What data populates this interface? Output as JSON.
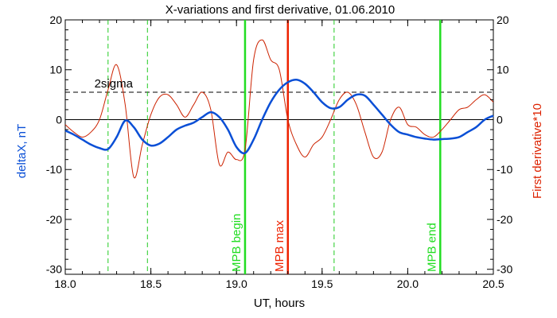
{
  "chart_data": {
    "type": "line",
    "title": "X-variations and first derivative, 01.06.2010",
    "xlabel": "UT, hours",
    "ylabel_left": "deltaX, nT",
    "ylabel_right": "First derivative*10",
    "xlim": [
      18.0,
      20.5
    ],
    "ylim": [
      -31,
      20
    ],
    "x_ticks": [
      18.0,
      18.5,
      19.0,
      19.5,
      20.0,
      20.5
    ],
    "x_tick_labels": [
      "18.0",
      "18.5",
      "19.0",
      "19.5",
      "20.0",
      "20.5"
    ],
    "y_ticks": [
      20,
      10,
      0,
      -10,
      -20,
      -30
    ],
    "y_tick_labels": [
      "20",
      "10",
      "0",
      "-10",
      "-20",
      "-30"
    ],
    "colors": {
      "deltaX": "#0a4fd6",
      "derivative": "#cc2200",
      "mpb_edges": "#22dd22",
      "mpb_max": "#ee2200",
      "sigma_band": "#22cc22"
    },
    "series": [
      {
        "name": "deltaX, nT",
        "x": [
          18.0,
          18.05,
          18.1,
          18.15,
          18.2,
          18.25,
          18.3,
          18.35,
          18.4,
          18.45,
          18.5,
          18.55,
          18.6,
          18.65,
          18.7,
          18.75,
          18.8,
          18.85,
          18.9,
          18.95,
          19.0,
          19.05,
          19.1,
          19.15,
          19.2,
          19.25,
          19.3,
          19.35,
          19.4,
          19.45,
          19.5,
          19.55,
          19.6,
          19.65,
          19.7,
          19.75,
          19.8,
          19.85,
          19.9,
          19.95,
          20.0,
          20.05,
          20.1,
          20.15,
          20.2,
          20.25,
          20.3,
          20.35,
          20.4,
          20.45,
          20.5
        ],
        "values": [
          -2.2,
          -3.0,
          -4.0,
          -5.0,
          -5.7,
          -5.9,
          -3.5,
          -0.2,
          -1.5,
          -4.0,
          -5.2,
          -4.8,
          -3.5,
          -2.0,
          -1.2,
          -0.6,
          0.5,
          1.5,
          0.5,
          -2.0,
          -5.5,
          -6.7,
          -4.0,
          0.0,
          3.5,
          6.0,
          7.5,
          8.0,
          7.2,
          5.5,
          3.5,
          2.3,
          2.5,
          4.0,
          5.0,
          4.8,
          3.0,
          1.0,
          -1.0,
          -2.5,
          -3.0,
          -3.5,
          -3.8,
          -4.0,
          -3.9,
          -3.8,
          -3.5,
          -2.5,
          -1.5,
          0.0,
          0.8
        ]
      },
      {
        "name": "First derivative*10",
        "x": [
          18.0,
          18.05,
          18.1,
          18.15,
          18.2,
          18.25,
          18.3,
          18.35,
          18.4,
          18.45,
          18.5,
          18.55,
          18.6,
          18.65,
          18.7,
          18.75,
          18.8,
          18.85,
          18.9,
          18.95,
          19.0,
          19.05,
          19.1,
          19.15,
          19.2,
          19.25,
          19.3,
          19.35,
          19.4,
          19.45,
          19.5,
          19.55,
          19.6,
          19.65,
          19.7,
          19.75,
          19.8,
          19.85,
          19.9,
          19.95,
          20.0,
          20.05,
          20.1,
          20.15,
          20.2,
          20.25,
          20.3,
          20.35,
          20.4,
          20.45,
          20.5
        ],
        "values": [
          -1.0,
          -2.5,
          -3.5,
          -2.5,
          0.0,
          6.0,
          11.0,
          3.0,
          -11.5,
          -5.0,
          1.0,
          4.5,
          5.0,
          3.0,
          0.5,
          3.0,
          5.5,
          2.0,
          -9.0,
          -6.5,
          -8.0,
          -6.0,
          12.0,
          16.0,
          12.0,
          10.0,
          0.0,
          -5.0,
          -7.5,
          -5.0,
          -3.5,
          0.0,
          4.0,
          5.5,
          3.0,
          -2.5,
          -7.5,
          -6.5,
          0.0,
          2.5,
          -1.0,
          -1.5,
          -3.0,
          -3.5,
          -2.0,
          0.0,
          2.0,
          2.5,
          4.0,
          5.0,
          3.5
        ]
      }
    ],
    "annotations": {
      "sigma_label": "2sigma",
      "sigma_level": 5.5,
      "zero_level": 0,
      "dashed_verticals": [
        18.25,
        18.48,
        19.57
      ],
      "mpb_begin": {
        "label": "MPB begin",
        "x": 19.05
      },
      "mpb_max": {
        "label": "MPB max",
        "x": 19.3
      },
      "mpb_end": {
        "label": "MPB end",
        "x": 20.19
      }
    },
    "grid": false,
    "legend": "none"
  }
}
